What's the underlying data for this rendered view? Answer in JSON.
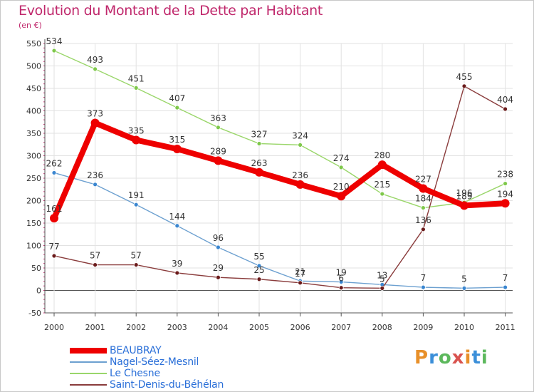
{
  "title": "Evolution du Montant de la Dette par Habitant",
  "subtitle": "(en €)",
  "brand": {
    "text": "Proxiti",
    "letter_colors": [
      "#e8902a",
      "#3b8fd9",
      "#5cb85c",
      "#d9534f",
      "#e8902a",
      "#3b8fd9",
      "#5cb85c"
    ]
  },
  "colors": {
    "title": "#c0286c",
    "axis_text": "#333333",
    "grid": "#e2e2e2",
    "axis": "#555555",
    "zero_line": "#555555",
    "legend_text": "#2a6fd8"
  },
  "chart_data": {
    "type": "line",
    "title": "Evolution du Montant de la Dette par Habitant",
    "subtitle": "(en €)",
    "xlabel": "",
    "ylabel": "",
    "x": [
      "2000",
      "2001",
      "2002",
      "2003",
      "2004",
      "2005",
      "2006",
      "2007",
      "2008",
      "2009",
      "2010",
      "2011"
    ],
    "ylim": [
      -50,
      550
    ],
    "yticks": [
      -50,
      0,
      50,
      100,
      150,
      200,
      250,
      300,
      350,
      400,
      450,
      500,
      550
    ],
    "grid": true,
    "legend_position": "bottom-left",
    "series": [
      {
        "name": "BEAUBRAY",
        "color": "#ee0000",
        "marker_color": "#ee0000",
        "style": "thick",
        "values": [
          161,
          373,
          335,
          315,
          289,
          263,
          236,
          210,
          280,
          227,
          189,
          194
        ],
        "labels": [
          "161",
          "373",
          "335",
          "315",
          "289",
          "263",
          "236",
          "210",
          "280",
          "227",
          "189",
          "194"
        ]
      },
      {
        "name": "Nagel-Séez-Mesnil",
        "color": "#6ca0d0",
        "marker_color": "#3a86d0",
        "style": "thin",
        "values": [
          262,
          236,
          191,
          144,
          96,
          55,
          21,
          19,
          13,
          7,
          5,
          7
        ],
        "labels": [
          "262",
          "236",
          "191",
          "144",
          "96",
          "55",
          "21",
          "19",
          "13",
          "7",
          "5",
          "7"
        ]
      },
      {
        "name": "Le Chesne",
        "color": "#9ad66a",
        "marker_color": "#7ec84a",
        "style": "thin",
        "values": [
          534,
          493,
          451,
          407,
          363,
          327,
          324,
          274,
          215,
          184,
          196,
          238
        ],
        "labels": [
          "534",
          "493",
          "451",
          "407",
          "363",
          "327",
          "324",
          "274",
          "215",
          "184",
          "196",
          "238"
        ]
      },
      {
        "name": "Saint-Denis-du-Béhélan",
        "color": "#8a3c3c",
        "marker_color": "#6a1a1a",
        "style": "thin",
        "values": [
          77,
          57,
          57,
          39,
          29,
          25,
          17,
          6,
          5,
          136,
          455,
          404
        ],
        "labels": [
          "77",
          "57",
          "57",
          "39",
          "29",
          "25",
          "17",
          "6",
          "5",
          "136",
          "455",
          "404"
        ]
      }
    ]
  }
}
